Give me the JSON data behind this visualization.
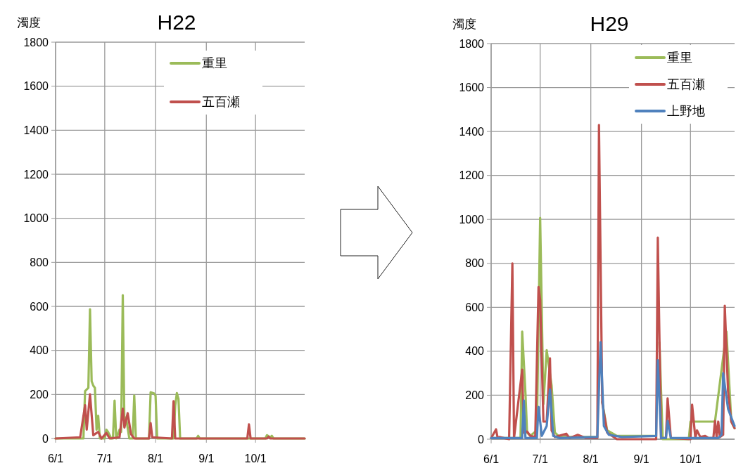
{
  "chart_data": [
    {
      "type": "line",
      "title": "H22",
      "ylabel": "濁度",
      "xlim": [
        "--06-01",
        "--10-31"
      ],
      "xticks": [
        {
          "value": "--06-01",
          "label": "6/1"
        },
        {
          "value": "--07-01",
          "label": "7/1"
        },
        {
          "value": "--08-01",
          "label": "8/1"
        },
        {
          "value": "--09-01",
          "label": "9/1"
        },
        {
          "value": "--10-01",
          "label": "10/1"
        }
      ],
      "ylim": [
        0,
        1800
      ],
      "yticks": [
        0,
        200,
        400,
        600,
        800,
        1000,
        1200,
        1400,
        1600,
        1800
      ],
      "grid": true,
      "legend": "top right",
      "marker": "none",
      "line_style": "solid",
      "series": [
        {
          "name": "重里",
          "color": "#9bbb59",
          "x": [
            "--06-01",
            "--06-16",
            "--06-18",
            "--06-19",
            "--06-21",
            "--06-22",
            "--06-23",
            "--06-24",
            "--06-25",
            "--06-26",
            "--06-27",
            "--06-28",
            "--07-01",
            "--07-02",
            "--07-03",
            "--07-05",
            "--07-06",
            "--07-07",
            "--07-08",
            "--07-10",
            "--07-11",
            "--07-12",
            "--07-13",
            "--07-14",
            "--07-16",
            "--07-18",
            "--07-19",
            "--07-20",
            "--07-28",
            "--07-29",
            "--07-31",
            "--08-01",
            "--08-02",
            "--08-12",
            "--08-13",
            "--08-14",
            "--08-15",
            "--08-16",
            "--08-26",
            "--08-27",
            "--08-28",
            "--10-07",
            "--10-08",
            "--10-10",
            "--10-11",
            "--10-12",
            "--10-31"
          ],
          "values": [
            0,
            0,
            0,
            215,
            230,
            587,
            260,
            240,
            230,
            40,
            103,
            0,
            0,
            40,
            30,
            0,
            0,
            172,
            0,
            40,
            30,
            651,
            60,
            95,
            0,
            0,
            195,
            0,
            0,
            210,
            205,
            195,
            0,
            0,
            150,
            206,
            180,
            0,
            0,
            12,
            0,
            0,
            15,
            5,
            12,
            0,
            0
          ]
        },
        {
          "name": "五百瀬",
          "color": "#c0504d",
          "x": [
            "--06-01",
            "--06-16",
            "--06-19",
            "--06-20",
            "--06-22",
            "--06-24",
            "--06-27",
            "--06-29",
            "--07-02",
            "--07-04",
            "--07-10",
            "--07-12",
            "--07-13",
            "--07-15",
            "--07-17",
            "--07-19",
            "--07-28",
            "--07-29",
            "--07-30",
            "--08-11",
            "--08-12",
            "--08-13",
            "--09-26",
            "--09-27",
            "--09-28",
            "--10-08",
            "--10-09",
            "--10-10",
            "--10-31"
          ],
          "values": [
            0,
            5,
            151,
            40,
            201,
            15,
            30,
            0,
            25,
            0,
            5,
            135,
            50,
            115,
            20,
            0,
            0,
            70,
            5,
            0,
            170,
            0,
            0,
            64,
            0,
            0,
            8,
            0,
            0
          ]
        }
      ]
    },
    {
      "type": "line",
      "title": "H29",
      "ylabel": "濁度",
      "xlim": [
        "--06-01",
        "--10-28"
      ],
      "xticks": [
        {
          "value": "--06-01",
          "label": "6/1"
        },
        {
          "value": "--07-01",
          "label": "7/1"
        },
        {
          "value": "--08-01",
          "label": "8/1"
        },
        {
          "value": "--09-01",
          "label": "9/1"
        },
        {
          "value": "--10-01",
          "label": "10/1"
        }
      ],
      "ylim": [
        0,
        1800
      ],
      "yticks": [
        0,
        200,
        400,
        600,
        800,
        1000,
        1200,
        1400,
        1600,
        1800
      ],
      "grid": true,
      "legend": "top right",
      "marker": "none",
      "line_style": "solid",
      "series": [
        {
          "name": "重里",
          "color": "#9bbb59",
          "x": [
            "--06-01",
            "--06-19",
            "--06-20",
            "--06-22",
            "--06-23",
            "--06-25",
            "--06-29",
            "--07-01",
            "--07-03",
            "--07-05",
            "--07-08",
            "--07-10",
            "--07-13",
            "--08-05",
            "--08-06",
            "--08-08",
            "--08-11",
            "--08-17",
            "--09-10",
            "--09-11",
            "--09-12",
            "--09-14",
            "--09-30",
            "--10-01",
            "--10-16",
            "--10-23",
            "--10-26",
            "--10-28"
          ],
          "values": [
            5,
            5,
            490,
            210,
            30,
            15,
            40,
            1007,
            160,
            405,
            245,
            30,
            10,
            10,
            null,
            170,
            40,
            15,
            15,
            null,
            440,
            0,
            0,
            80,
            80,
            490,
            80,
            50
          ]
        },
        {
          "name": "五百瀬",
          "color": "#c0504d",
          "x": [
            "--06-01",
            "--06-04",
            "--06-05",
            "--06-06",
            "--06-12",
            "--06-14",
            "--06-15",
            "--06-20",
            "--06-21",
            "--06-23",
            "--06-25",
            "--06-28",
            "--06-30",
            "--07-01",
            "--07-03",
            "--07-05",
            "--07-07",
            "--07-08",
            "--07-10",
            "--07-17",
            "--07-19",
            "--07-24",
            "--07-29",
            "--08-05",
            "--08-06",
            "--08-08",
            "--08-11",
            "--08-17",
            "--09-10",
            "--09-11",
            "--09-13",
            "--09-16",
            "--09-17",
            "--09-19",
            "--10-01",
            "--10-02",
            "--10-04",
            "--10-05",
            "--10-07",
            "--10-10",
            "--10-12",
            "--10-15",
            "--10-16",
            "--10-17",
            "--10-18",
            "--10-19",
            "--10-21",
            "--10-22",
            "--10-24",
            "--10-26",
            "--10-28"
          ],
          "values": [
            5,
            45,
            5,
            10,
            0,
            800,
            5,
            316,
            30,
            35,
            15,
            10,
            693,
            634,
            80,
            80,
            368,
            40,
            10,
            25,
            5,
            20,
            5,
            5,
            1430,
            166,
            30,
            0,
            0,
            917,
            5,
            5,
            186,
            5,
            0,
            157,
            5,
            40,
            10,
            15,
            5,
            5,
            83,
            10,
            80,
            10,
            20,
            607,
            218,
            80,
            50
          ]
        },
        {
          "name": "上野地",
          "color": "#4f81bd",
          "x": [
            "--06-01",
            "--06-20",
            "--06-21",
            "--06-22",
            "--06-29",
            "--06-30",
            "--07-02",
            "--07-05",
            "--07-07",
            "--07-09",
            "--07-13",
            "--08-05",
            "--08-07",
            "--08-09",
            "--08-12",
            "--08-20",
            "--09-10",
            "--09-11",
            "--09-13",
            "--09-16",
            "--09-17",
            "--09-19",
            "--10-18",
            "--10-20",
            "--10-21",
            "--10-24",
            "--10-28"
          ],
          "values": [
            5,
            5,
            176,
            5,
            5,
            147,
            15,
            60,
            227,
            15,
            5,
            10,
            442,
            60,
            20,
            10,
            15,
            359,
            5,
            5,
            83,
            5,
            5,
            20,
            300,
            138,
            60
          ]
        }
      ]
    }
  ]
}
